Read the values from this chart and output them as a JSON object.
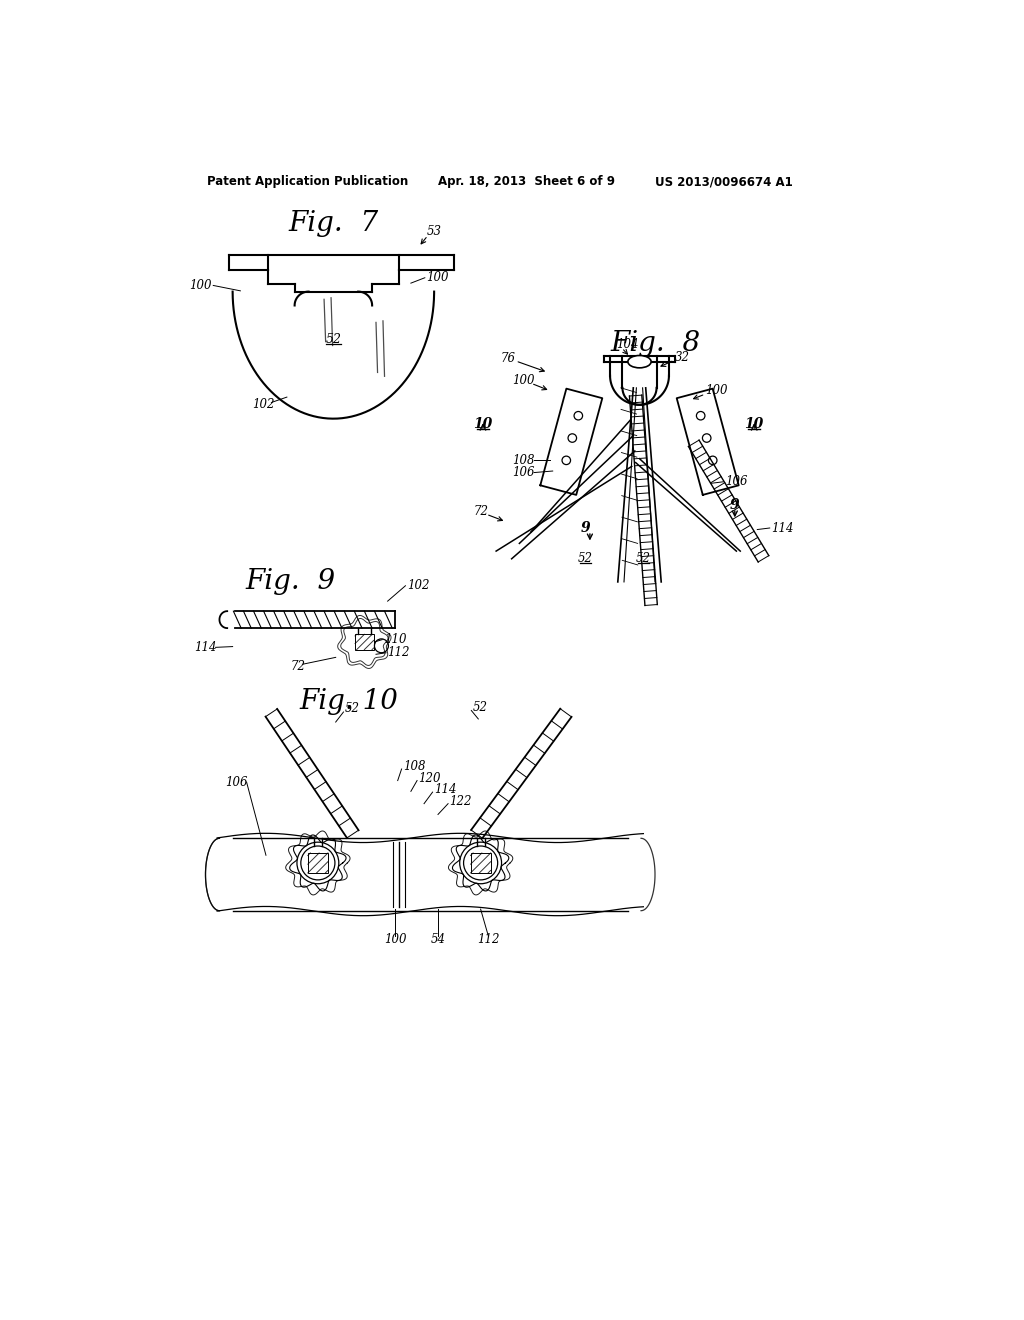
{
  "bg_color": "#ffffff",
  "line_color": "#000000",
  "header_left": "Patent Application Publication",
  "header_mid": "Apr. 18, 2013  Sheet 6 of 9",
  "header_right": "US 2013/0096674 A1",
  "fig7_title": "Fig.  7",
  "fig8_title": "Fig.  8",
  "fig9_title": "Fig.  9",
  "fig10_title": "Fig. 10"
}
